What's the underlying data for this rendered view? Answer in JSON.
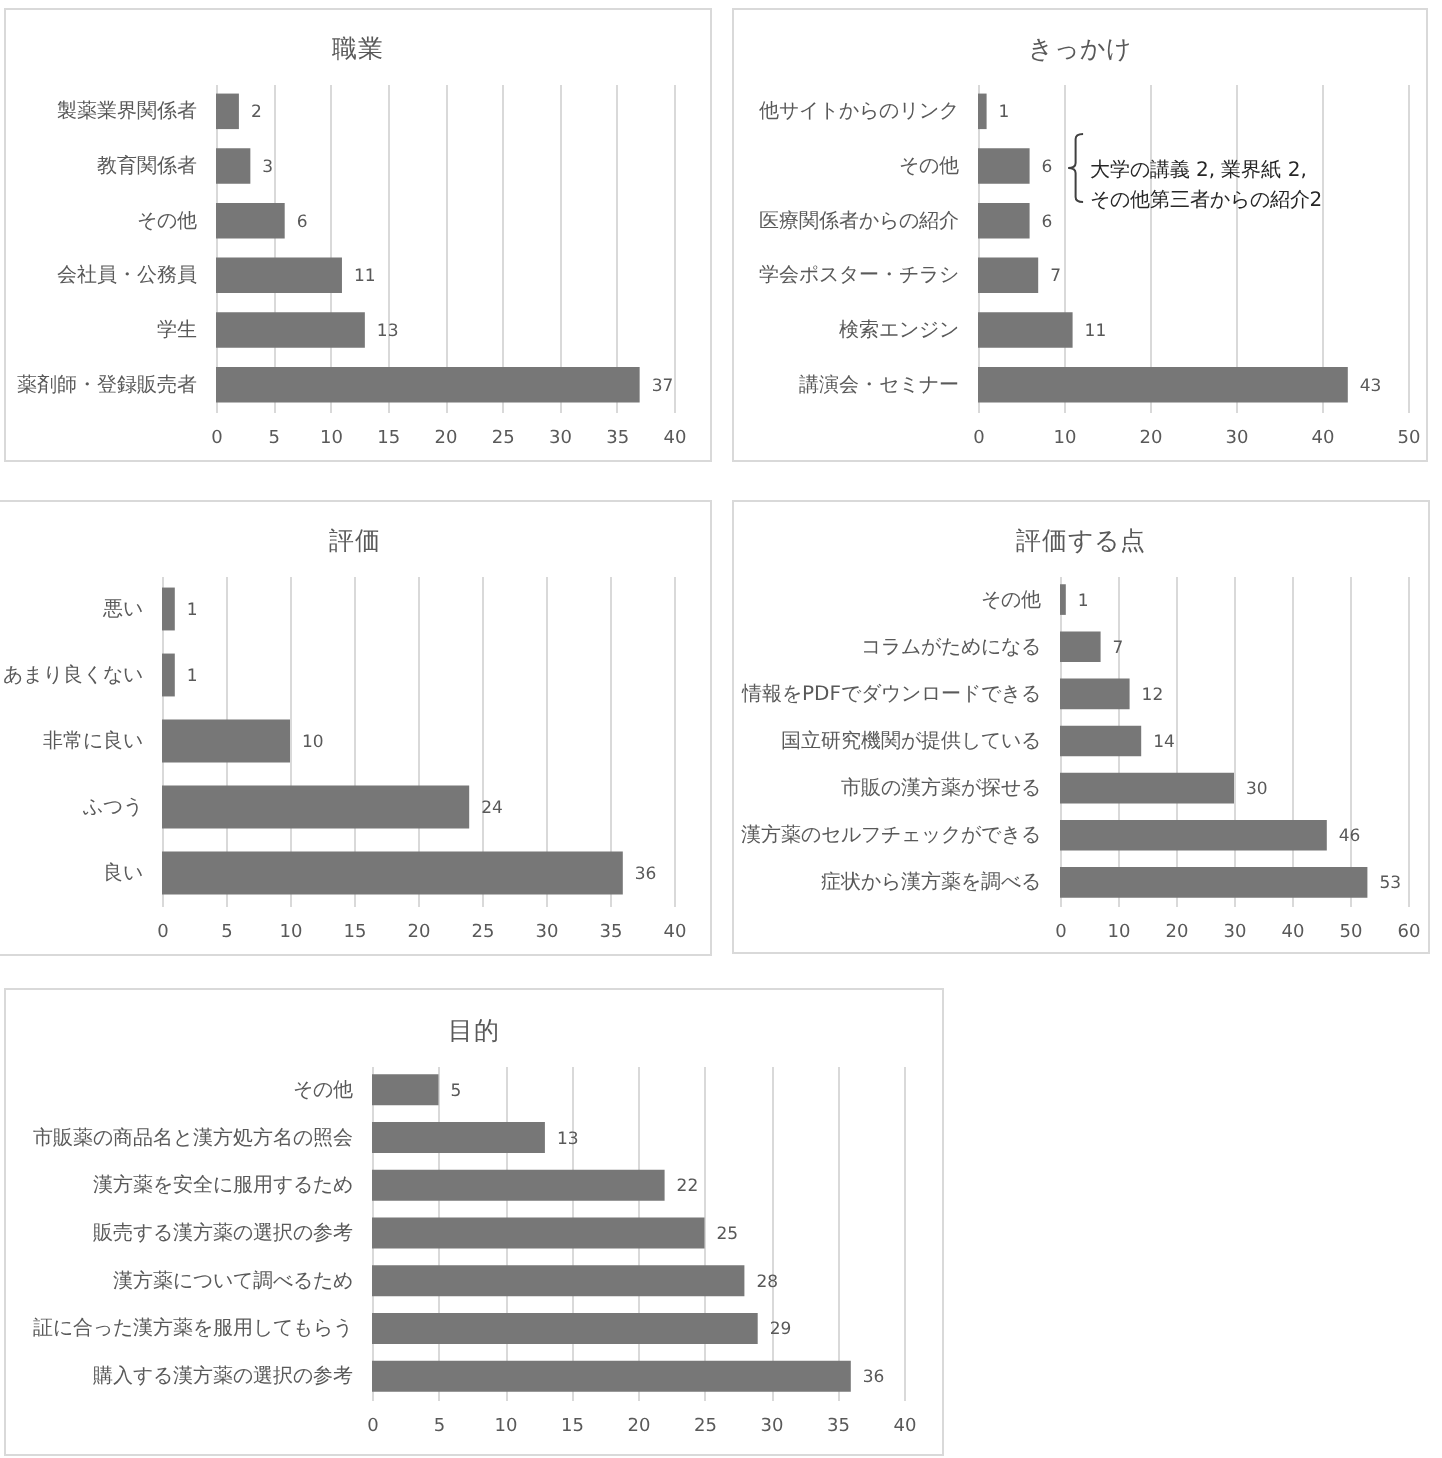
{
  "chart_data": [
    {
      "type": "bar",
      "orientation": "horizontal",
      "title": "職業",
      "categories": [
        "製薬業界関係者",
        "教育関係者",
        "その他",
        "会社員・公務員",
        "学生",
        "薬剤師・登録販売者"
      ],
      "values": [
        2,
        3,
        6,
        11,
        13,
        37
      ],
      "color": "#777777",
      "xlim": [
        0,
        40
      ],
      "xticks": [
        0,
        5,
        10,
        15,
        20,
        25,
        30,
        35,
        40
      ],
      "grid": "x",
      "data_labels": true
    },
    {
      "type": "bar",
      "orientation": "horizontal",
      "title": "きっかけ",
      "categories": [
        "他サイトからのリンク",
        "その他",
        "医療関係者からの紹介",
        "学会ポスター・チラシ",
        "検索エンジン",
        "講演会・セミナー"
      ],
      "values": [
        1,
        6,
        6,
        7,
        11,
        43
      ],
      "color": "#777777",
      "xlim": [
        0,
        50
      ],
      "xticks": [
        0,
        10,
        20,
        30,
        40,
        50
      ],
      "grid": "x",
      "data_labels": true,
      "annotations": [
        {
          "text": "大学の講義 2, 業界紙 2,\nその他第三者からの紹介2",
          "x": 6,
          "y": "その他"
        }
      ]
    },
    {
      "type": "bar",
      "orientation": "horizontal",
      "title": "評価",
      "categories": [
        "悪い",
        "あまり良くない",
        "非常に良い",
        "ふつう",
        "良い"
      ],
      "values": [
        1,
        1,
        10,
        24,
        36
      ],
      "color": "#777777",
      "xlim": [
        0,
        40
      ],
      "xticks": [
        0,
        5,
        10,
        15,
        20,
        25,
        30,
        35,
        40
      ],
      "grid": "x",
      "data_labels": true
    },
    {
      "type": "bar",
      "orientation": "horizontal",
      "title": "評価する点",
      "categories": [
        "その他",
        "コラムがためになる",
        "情報をPDFでダウンロードできる",
        "国立研究機関が提供している",
        "市販の漢方薬が探せる",
        "漢方薬のセルフチェックができる",
        "症状から漢方薬を調べる"
      ],
      "values": [
        1,
        7,
        12,
        14,
        30,
        46,
        53
      ],
      "color": "#777777",
      "xlim": [
        0,
        60
      ],
      "xticks": [
        0,
        10,
        20,
        30,
        40,
        50,
        60
      ],
      "grid": "x",
      "data_labels": true
    },
    {
      "type": "bar",
      "orientation": "horizontal",
      "title": "目的",
      "categories": [
        "その他",
        "市販薬の商品名と漢方処方名の照会",
        "漢方薬を安全に服用するため",
        "販売する漢方薬の選択の参考",
        "漢方薬について調べるため",
        "証に合った漢方薬を服用してもらう",
        "購入する漢方薬の選択の参考"
      ],
      "values": [
        5,
        13,
        22,
        25,
        28,
        29,
        36
      ],
      "color": "#777777",
      "xlim": [
        0,
        40
      ],
      "xticks": [
        0,
        5,
        10,
        15,
        20,
        25,
        30,
        35,
        40
      ],
      "grid": "x",
      "data_labels": true
    }
  ]
}
